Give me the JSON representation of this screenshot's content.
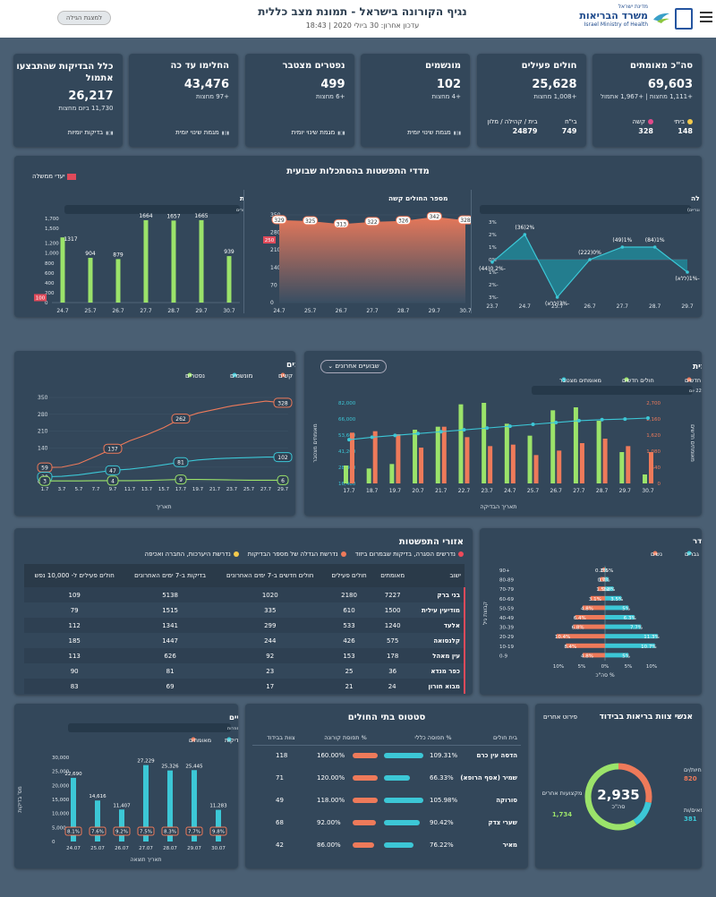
{
  "header": {
    "title": "נגיף הקורונה בישראל - תמונת מצב כללית",
    "updated": "עדכון אחרון: 30 ביולי 2020 | 18:43",
    "mode_button": "למצגת הגילה",
    "ministry_top": "מדינת ישראל",
    "ministry_name": "משרד הבריאות",
    "ministry_en": "Israel Ministry of Health"
  },
  "kpis": [
    {
      "title": "סה\"כ מאומתים",
      "value": "69,603",
      "delta": "+1,111 מחצות | +1,967 אתמול",
      "sub": [
        {
          "label": "ביתי",
          "value": "148"
        },
        {
          "label": "קשה",
          "value": "328"
        }
      ]
    },
    {
      "title": "חולים פעילים",
      "value": "25,628",
      "delta": "+1,008 מחצות",
      "sub": [
        {
          "label": "בי\"ח",
          "value": "749"
        },
        {
          "label": "בית / קהילה / מלון",
          "value": "24879"
        }
      ]
    },
    {
      "title": "מונשמים",
      "value": "102",
      "delta": "+4 מחצות",
      "link": "מגמת שינוי יומית"
    },
    {
      "title": "נפטרים מצטבר",
      "value": "499",
      "delta": "+6 מחצות",
      "link": "מגמת שינוי יומית"
    },
    {
      "title": "החלימו עד כה",
      "value": "43,476",
      "delta": "+97 מחצות",
      "link": "מגמת שינוי יומית"
    },
    {
      "title": "כלל הבדיקות שהתבצעו אתמול",
      "value": "26,217",
      "delta": "11,730 ביום מחצות",
      "link": "בדיקות יומיות"
    }
  ],
  "weekly": {
    "title": "מדדי התפשטות בהסתכלות שבועית",
    "legend": "יעדי ממשלה"
  },
  "chart_data": [
    {
      "type": "area",
      "id": "change",
      "title": "מגמת שינוי במאומתים חדשים וקצב הכפלה",
      "note": "% שינוי במאומתים חדשים שבועי, מספר ימים להכפלה (בסוגריים)",
      "categories": [
        "23.7",
        "24.7",
        "25.7",
        "26.7",
        "27.7",
        "28.7",
        "29.7"
      ],
      "values": [
        -0.2,
        2,
        -3,
        0,
        1,
        1,
        -1
      ],
      "labels": [
        "-0.2%(44)",
        "2%(36)",
        "-3%(ללא)",
        "0%(222)",
        "1%(49)",
        "1%(84)",
        "-1%(ללא)"
      ],
      "ylim": [
        -3,
        3
      ]
    },
    {
      "type": "area",
      "id": "severe",
      "title": "מספר החולים קשה",
      "categories": [
        "24.7",
        "25.7",
        "26.7",
        "27.7",
        "28.7",
        "29.7",
        "30.7"
      ],
      "values": [
        329,
        325,
        313,
        322,
        326,
        342,
        328
      ],
      "target": 250,
      "ylim": [
        0,
        350
      ]
    },
    {
      "type": "bar",
      "id": "newconf",
      "title": "מספר המאומתים החדשים מחוץ לאזורי התפשטות",
      "note": "התבסס על נתונים של חולים משבוע אחרון, מאומתים בישובים ואזורים",
      "categories": [
        "24.7",
        "25.7",
        "26.7",
        "27.7",
        "28.7",
        "29.7",
        "30.7"
      ],
      "values": [
        1317,
        904,
        879,
        1664,
        1657,
        1665,
        939
      ],
      "target": 100,
      "ylim": [
        0,
        1700
      ]
    },
    {
      "type": "line",
      "id": "trend",
      "title": "חולים קשה ומונשמים",
      "legend": [
        "חולים קשים",
        "מונשמים",
        "נפטרים"
      ],
      "xlabel": "תאריך",
      "categories": [
        "1.7",
        "3.7",
        "5.7",
        "7.7",
        "9.7",
        "11.7",
        "13.7",
        "15.7",
        "17.7",
        "19.7",
        "21.7",
        "23.7",
        "25.7",
        "27.7",
        "29.7"
      ],
      "series": [
        {
          "name": "חולים קשים",
          "values": [
            59,
            60,
            75,
            105,
            137,
            170,
            195,
            225,
            262,
            285,
            300,
            315,
            325,
            335,
            328
          ]
        },
        {
          "name": "מונשמים",
          "values": [
            20,
            22,
            28,
            38,
            47,
            52,
            60,
            70,
            81,
            90,
            95,
            98,
            100,
            102,
            102
          ]
        },
        {
          "name": "נפטרים",
          "values": [
            3,
            3,
            3,
            4,
            4,
            4,
            5,
            7,
            9,
            9,
            8,
            7,
            6,
            6,
            6
          ]
        }
      ],
      "point_labels": [
        {
          "i": 0,
          "s": 0,
          "t": "59"
        },
        {
          "i": 4,
          "s": 0,
          "t": "137"
        },
        {
          "i": 8,
          "s": 0,
          "t": "262"
        },
        {
          "i": 14,
          "s": 0,
          "t": "328"
        },
        {
          "i": 0,
          "s": 1,
          "t": "20"
        },
        {
          "i": 4,
          "s": 1,
          "t": "47"
        },
        {
          "i": 8,
          "s": 1,
          "t": "81"
        },
        {
          "i": 14,
          "s": 1,
          "t": "102"
        },
        {
          "i": 0,
          "s": 2,
          "t": "3"
        },
        {
          "i": 4,
          "s": 2,
          "t": "4"
        },
        {
          "i": 8,
          "s": 2,
          "t": "9"
        },
        {
          "i": 14,
          "s": 2,
          "t": "6"
        }
      ],
      "yticks": [
        0,
        60,
        140,
        210,
        280,
        350
      ],
      "ylim": [
        0,
        350
      ]
    },
    {
      "type": "bar",
      "id": "epi",
      "title": "עקומה אפידמית",
      "note": "מספר הבדיקות היום היה כפול מהממוצע לשבוע 22 יום",
      "toggle": "שבועיים אחרונים",
      "legend": [
        "מאומתים חדשים",
        "חולים חדשים",
        "מאומתים מצטבר"
      ],
      "xlabel": "תאריך הבדיקה",
      "ylabel_left": "מאומתים חדשים",
      "ylabel_right": "מאומתים מצטבר",
      "categories": [
        "17.7",
        "18.7",
        "19.7",
        "20.7",
        "21.7",
        "22.7",
        "23.7",
        "24.7",
        "25.7",
        "26.7",
        "27.7",
        "28.7",
        "29.7",
        "30.7"
      ],
      "series": [
        {
          "name": "מאומתים חדשים",
          "values": [
            1700,
            1750,
            1650,
            1200,
            1900,
            1550,
            1250,
            1300,
            950,
            1100,
            1350,
            1500,
            1250,
            1050
          ]
        },
        {
          "name": "חולים חדשים",
          "values": [
            600,
            500,
            650,
            1800,
            1900,
            2650,
            2700,
            2000,
            1600,
            2450,
            2550,
            2100,
            1050,
            300
          ]
        },
        {
          "name": "מאומתים מצטבר",
          "values": [
            52000,
            54000,
            55500,
            57000,
            58500,
            60000,
            61500,
            63000,
            64500,
            66000,
            67500,
            68300,
            68800,
            69600
          ]
        }
      ],
      "yticks_left": [
        0,
        540,
        1080,
        1620,
        2160,
        2700
      ],
      "yticks_right": [
        "16,400",
        "28,800",
        "41,200",
        "53,600",
        "66,000",
        "82,000"
      ],
      "ylim_left": [
        0,
        2700
      ],
      "ylim_right": [
        16400,
        82000
      ]
    },
    {
      "type": "bar",
      "id": "agegender",
      "title": "פיזור חולים גיל ומגדר",
      "legend": [
        "גברים",
        "נשים"
      ],
      "ylabel": "קבוצת גיל",
      "xlabel": "% סה\"כ",
      "categories": [
        "+90",
        "80-89",
        "70-79",
        "60-69",
        "50-59",
        "40-49",
        "30-39",
        "20-29",
        "10-19",
        "0-9"
      ],
      "series": [
        {
          "name": "גברים",
          "values": [
            0.2,
            0.7,
            1.8,
            3.5,
            5,
            6.3,
            7.7,
            11.3,
            10.7,
            5
          ]
        },
        {
          "name": "נשים",
          "values": [
            0.5,
            1,
            1.5,
            3.1,
            4.8,
            6.4,
            6.8,
            10.4,
            8.4,
            4.8
          ]
        }
      ],
      "labels_m": [
        "0.2%",
        "0.7%",
        "1.8%",
        "3.5%",
        "5%",
        "6.3%",
        "7.7%",
        "11.3%",
        "10.7%",
        "5%"
      ],
      "labels_f": [
        "0.5%",
        "1%",
        "1.5%",
        "3.1%",
        "4.8%",
        "6.4%",
        "6.8%",
        "10.4%",
        "8.4%",
        "4.8%"
      ]
    },
    {
      "type": "bar",
      "id": "tests",
      "title": "בדיקות לאיתור מאומתים ומאומתים חיוביים",
      "note": "התוצאות אינם כוללים בדיקות מתבצעות במקרה החוזרות",
      "legend": [
        "בדיקות",
        "מאומתים"
      ],
      "xlabel": "תאריך תוצאה",
      "ylabel": "מס' בדיקות",
      "categories": [
        "24.07",
        "25.07",
        "26.07",
        "27.07",
        "28.07",
        "29.07",
        "30.07"
      ],
      "values": [
        22690,
        14616,
        11407,
        27229,
        25326,
        25445,
        11283
      ],
      "rates": [
        "8.1%",
        "7.6%",
        "9.2%",
        "7.5%",
        "8.3%",
        "7.7%",
        "9.8%"
      ],
      "yticks": [
        "0",
        "5,000",
        "10,000",
        "15,000",
        "20,000",
        "25,000",
        "30,000"
      ],
      "ylim": [
        0,
        30000
      ]
    }
  ],
  "regions": {
    "title": "אזורי התפשטות",
    "legend": [
      "נדרשים הסגרה, בדיקות שבמרום ביזוד",
      "נדרשת הגדלה של מספר הבדיקות",
      "נדרשת היערכות, החברה ואכיפה"
    ],
    "columns": [
      "ישוב",
      "מאומתים",
      "חולים פעילים",
      "חולים חדשים ב-7 ימים האחרונים",
      "בדיקות ב-7 ימים האחרונים",
      "חולים פעילים ל- 10,000 נפש"
    ],
    "rows": [
      [
        "בני ברק",
        "7227",
        "2180",
        "1020",
        "5138",
        "109"
      ],
      [
        "מודיעין עילית",
        "1500",
        "610",
        "335",
        "1515",
        "79"
      ],
      [
        "אלעד",
        "1240",
        "533",
        "299",
        "1341",
        "112"
      ],
      [
        "קלנסואה",
        "575",
        "426",
        "244",
        "1447",
        "185"
      ],
      [
        "עין מאהל",
        "178",
        "153",
        "92",
        "626",
        "113"
      ],
      [
        "כפר מנדא",
        "36",
        "25",
        "23",
        "81",
        "90"
      ],
      [
        "מבוא חורון",
        "24",
        "21",
        "17",
        "69",
        "83"
      ]
    ]
  },
  "hospitals": {
    "title": "סטטוס בתי החולים",
    "columns": [
      "בית חולים",
      "% תפוסה כללי",
      "% תפוסת קורונה",
      "צוות בבידוד"
    ],
    "rows": [
      {
        "name": "הדסה עין כרם",
        "general": "109.31%",
        "corona": "160.00%",
        "staff": "118",
        "g": 1.0,
        "c": 1.0
      },
      {
        "name": "שמיר (אסף הרופא)",
        "general": "66.33%",
        "corona": "120.00%",
        "staff": "71",
        "g": 0.66,
        "c": 1.0
      },
      {
        "name": "סורוקה",
        "general": "105.98%",
        "corona": "118.00%",
        "staff": "49",
        "g": 1.0,
        "c": 1.0
      },
      {
        "name": "שערי צדק",
        "general": "90.42%",
        "corona": "92.00%",
        "staff": "68",
        "g": 0.9,
        "c": 0.92
      },
      {
        "name": "מאיר",
        "general": "76.22%",
        "corona": "86.00%",
        "staff": "42",
        "g": 0.76,
        "c": 0.86
      }
    ]
  },
  "staff": {
    "title": "אנשי צוות בריאות בבידוד",
    "link": "פירוט אחרים",
    "total": "2,935",
    "total_label": "סה\"כ",
    "segments": [
      {
        "name": "אחיות/ים",
        "value": "820"
      },
      {
        "name": "רופאים/ות",
        "value": "381"
      },
      {
        "name": "מקצועות אחרים",
        "value": "1,734"
      }
    ]
  },
  "colors": {
    "green": "#9be36a",
    "orange": "#ee7a5a",
    "cyan": "#3cc7d6",
    "panel": "#33475a"
  }
}
